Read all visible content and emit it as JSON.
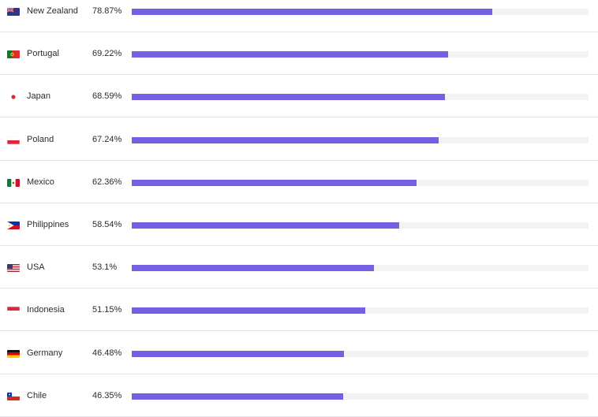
{
  "chart_data": {
    "type": "bar",
    "orientation": "horizontal",
    "xlim": [
      0,
      100
    ],
    "series": [
      {
        "values": [
          78.87,
          69.22,
          68.59,
          67.24,
          62.36,
          58.54,
          53.1,
          51.15,
          46.48,
          46.35
        ]
      }
    ],
    "rows": [
      {
        "country": "New Zealand",
        "value": 78.87,
        "label": "78.87%",
        "flag": "new-zealand-flag-icon"
      },
      {
        "country": "Portugal",
        "value": 69.22,
        "label": "69.22%",
        "flag": "portugal-flag-icon"
      },
      {
        "country": "Japan",
        "value": 68.59,
        "label": "68.59%",
        "flag": "japan-flag-icon"
      },
      {
        "country": "Poland",
        "value": 67.24,
        "label": "67.24%",
        "flag": "poland-flag-icon"
      },
      {
        "country": "Mexico",
        "value": 62.36,
        "label": "62.36%",
        "flag": "mexico-flag-icon"
      },
      {
        "country": "Philippines",
        "value": 58.54,
        "label": "58.54%",
        "flag": "philippines-flag-icon"
      },
      {
        "country": "USA",
        "value": 53.1,
        "label": "53.1%",
        "flag": "usa-flag-icon"
      },
      {
        "country": "Indonesia",
        "value": 51.15,
        "label": "51.15%",
        "flag": "indonesia-flag-icon"
      },
      {
        "country": "Germany",
        "value": 46.48,
        "label": "46.48%",
        "flag": "germany-flag-icon"
      },
      {
        "country": "Chile",
        "value": 46.35,
        "label": "46.35%",
        "flag": "chile-flag-icon"
      }
    ]
  },
  "colors": {
    "bar": "#7560e3",
    "track": "#f3f3f5",
    "text": "#2b2b33",
    "divider": "#e6e6ea"
  }
}
